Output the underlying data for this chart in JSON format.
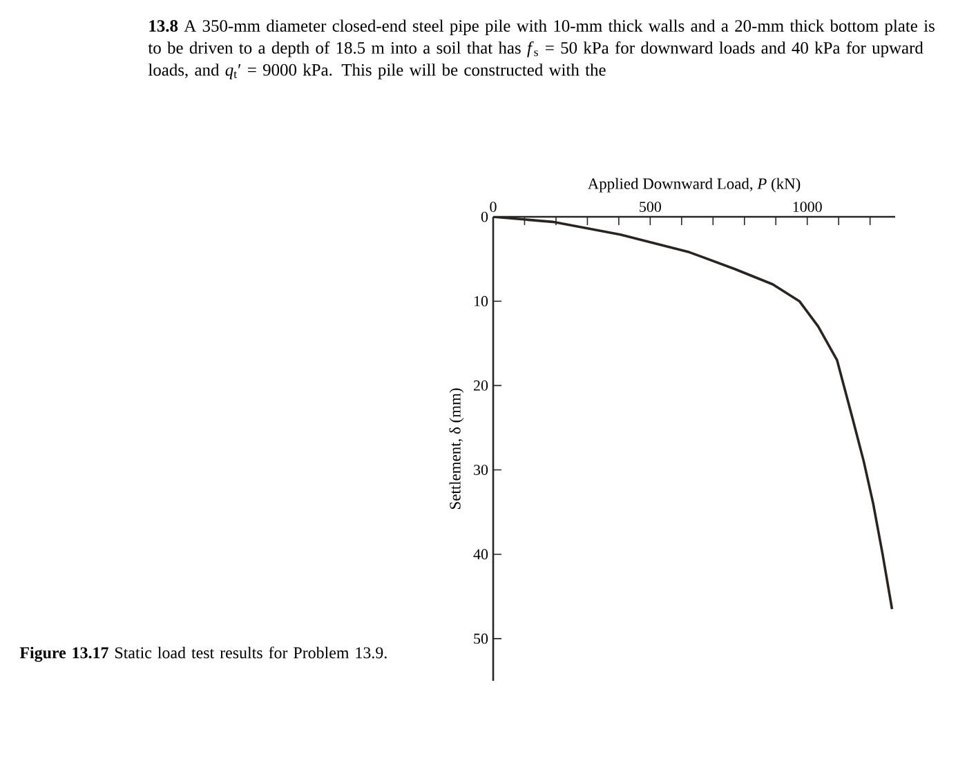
{
  "chart_data": {
    "type": "line",
    "annotations": [
      "**13.8** A 350-mm diameter closed-end steel pipe pile with 10-mm thick walls and a 20-mm thick bottom plate is to be driven to a depth of 18.5 m into a soil that has *f*$_{s}$ = 50 kPa for downward loads and 40 kPa for upward loads, and *q*$_{t}$′ = 9000 kPa. This pile will be constructed with the",
      "**Figure 13.17**   Static load test results for Problem 13.9."
    ],
    "xlabel": "Applied Downward Load, *P* (kN)",
    "ylabel": "Settlement, δ (mm)",
    "x": [
      0,
      190,
      405,
      625,
      770,
      890,
      975,
      1035,
      1095,
      1145,
      1180,
      1210,
      1240,
      1270
    ],
    "series": [
      {
        "color": "#2a2421",
        "values": [
          0,
          0.6,
          2.1,
          4.2,
          6.2,
          8,
          10,
          13,
          17,
          24,
          29,
          34,
          40,
          46.5
        ]
      }
    ],
    "xlim": [
      0,
      1280
    ],
    "ylim": [
      55,
      0
    ],
    "xticks": [
      0,
      {
        "value": 100,
        "label": null
      },
      {
        "value": 200,
        "label": null
      },
      {
        "value": 300,
        "label": null
      },
      {
        "value": 400,
        "label": null
      },
      500,
      {
        "value": 600,
        "label": null
      },
      {
        "value": 700,
        "label": null
      },
      {
        "value": 800,
        "label": null
      },
      {
        "value": 900,
        "label": null
      },
      1000,
      {
        "value": 1100,
        "label": null
      },
      {
        "value": 1200,
        "label": null
      }
    ],
    "yticks": [
      0,
      10,
      20,
      30,
      40,
      50
    ]
  }
}
